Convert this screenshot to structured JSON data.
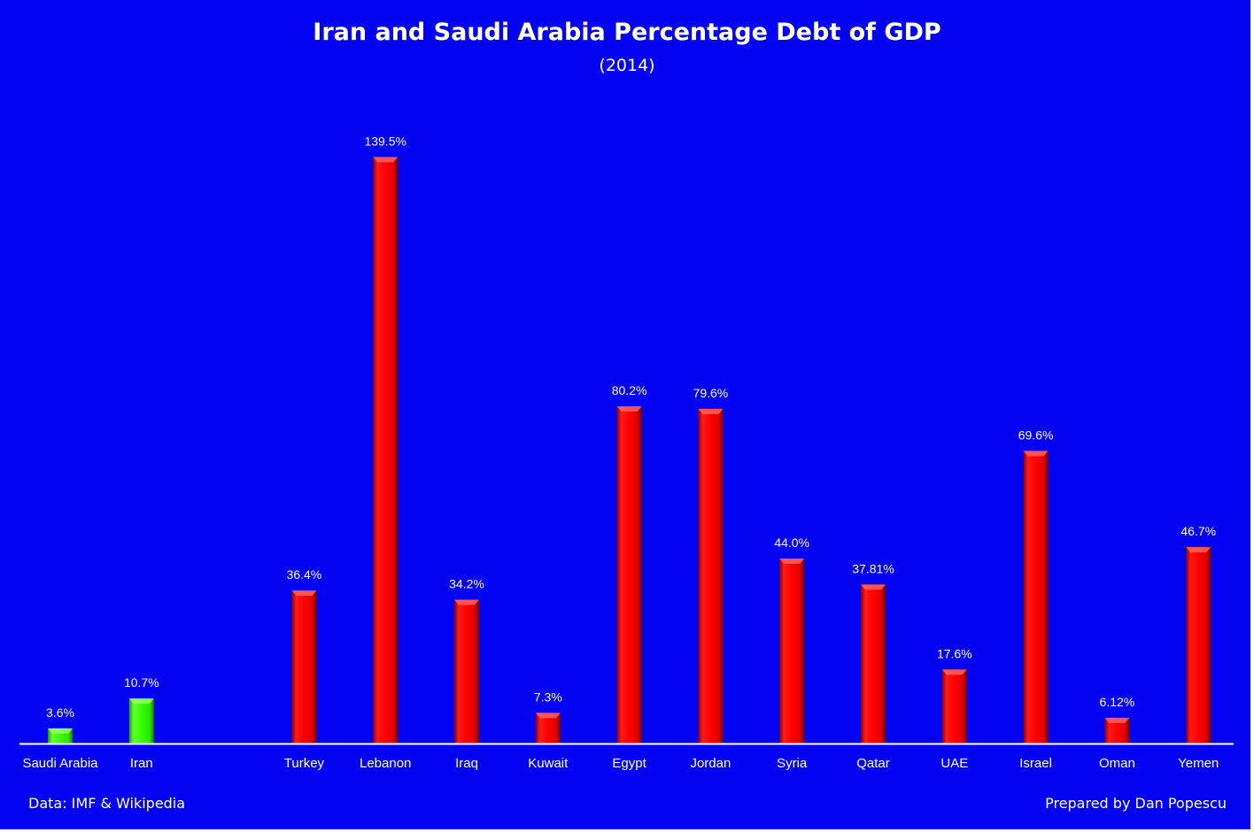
{
  "chart_data": {
    "type": "bar",
    "title": "Iran and Saudi Arabia Percentage Debt of GDP",
    "subtitle": "(2014)",
    "categories": [
      "Saudi Arabia",
      "Iran",
      "",
      "Turkey",
      "Lebanon",
      "Iraq",
      "Kuwait",
      "Egypt",
      "Jordan",
      "Syria",
      "Qatar",
      "UAE",
      "Israel",
      "Oman",
      "Yemen"
    ],
    "values": [
      3.6,
      10.7,
      null,
      36.4,
      139.5,
      34.2,
      7.3,
      80.2,
      79.6,
      44.0,
      37.81,
      17.6,
      69.6,
      6.12,
      46.7
    ],
    "data_labels": [
      "3.6%",
      "10.7%",
      "",
      "36.4%",
      "139.5%",
      "34.2%",
      "7.3%",
      "80.2%",
      "79.6%",
      "44.0%",
      "37.81%",
      "17.6%",
      "69.6%",
      "6.12%",
      "46.7%"
    ],
    "bar_colors": [
      "#33ff00",
      "#33ff00",
      "",
      "#ff0000",
      "#ff0000",
      "#ff0000",
      "#ff0000",
      "#ff0000",
      "#ff0000",
      "#ff0000",
      "#ff0000",
      "#ff0000",
      "#ff0000",
      "#ff0000",
      "#ff0000"
    ],
    "ylim": [
      0,
      150
    ],
    "grid": false,
    "legend": "none",
    "background_color": "#0303f2",
    "text_color": "#ffffff"
  },
  "footer": {
    "source": "Data: IMF & Wikipedia",
    "credit": "Prepared by Dan Popescu"
  }
}
